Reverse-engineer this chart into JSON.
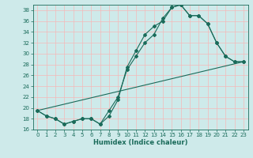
{
  "xlabel": "Humidex (Indice chaleur)",
  "bg_color": "#ceeaea",
  "line_color": "#1a6b5a",
  "grid_color": "#f5b8b8",
  "xlim": [
    -0.5,
    23.5
  ],
  "ylim": [
    16,
    39
  ],
  "xticks": [
    0,
    1,
    2,
    3,
    4,
    5,
    6,
    7,
    8,
    9,
    10,
    11,
    12,
    13,
    14,
    15,
    16,
    17,
    18,
    19,
    20,
    21,
    22,
    23
  ],
  "yticks": [
    16,
    18,
    20,
    22,
    24,
    26,
    28,
    30,
    32,
    34,
    36,
    38
  ],
  "line1_x": [
    0,
    1,
    2,
    3,
    4,
    5,
    6,
    7,
    8,
    9,
    10,
    11,
    12,
    13,
    14,
    15,
    16,
    17,
    18,
    19,
    20,
    21,
    22,
    23
  ],
  "line1_y": [
    19.5,
    18.5,
    18.0,
    17.0,
    17.5,
    18.0,
    18.0,
    17.0,
    18.5,
    21.5,
    27.5,
    30.5,
    33.5,
    35.0,
    36.0,
    38.5,
    39.0,
    37.0,
    37.0,
    35.5,
    32.0,
    29.5,
    28.5,
    28.5
  ],
  "line2_x": [
    0,
    1,
    2,
    3,
    4,
    5,
    6,
    7,
    8,
    9,
    10,
    11,
    12,
    13,
    14,
    15,
    16,
    17,
    18,
    19,
    20,
    21,
    22,
    23
  ],
  "line2_y": [
    19.5,
    18.5,
    18.0,
    17.0,
    17.5,
    18.0,
    18.0,
    17.0,
    19.5,
    22.0,
    27.0,
    29.5,
    32.0,
    33.5,
    36.5,
    38.5,
    39.0,
    37.0,
    37.0,
    35.5,
    32.0,
    29.5,
    28.5,
    28.5
  ],
  "line3_x": [
    0,
    23
  ],
  "line3_y": [
    19.5,
    28.5
  ],
  "marker_size": 2.0,
  "line_width": 0.8,
  "tick_fontsize": 5,
  "xlabel_fontsize": 6
}
